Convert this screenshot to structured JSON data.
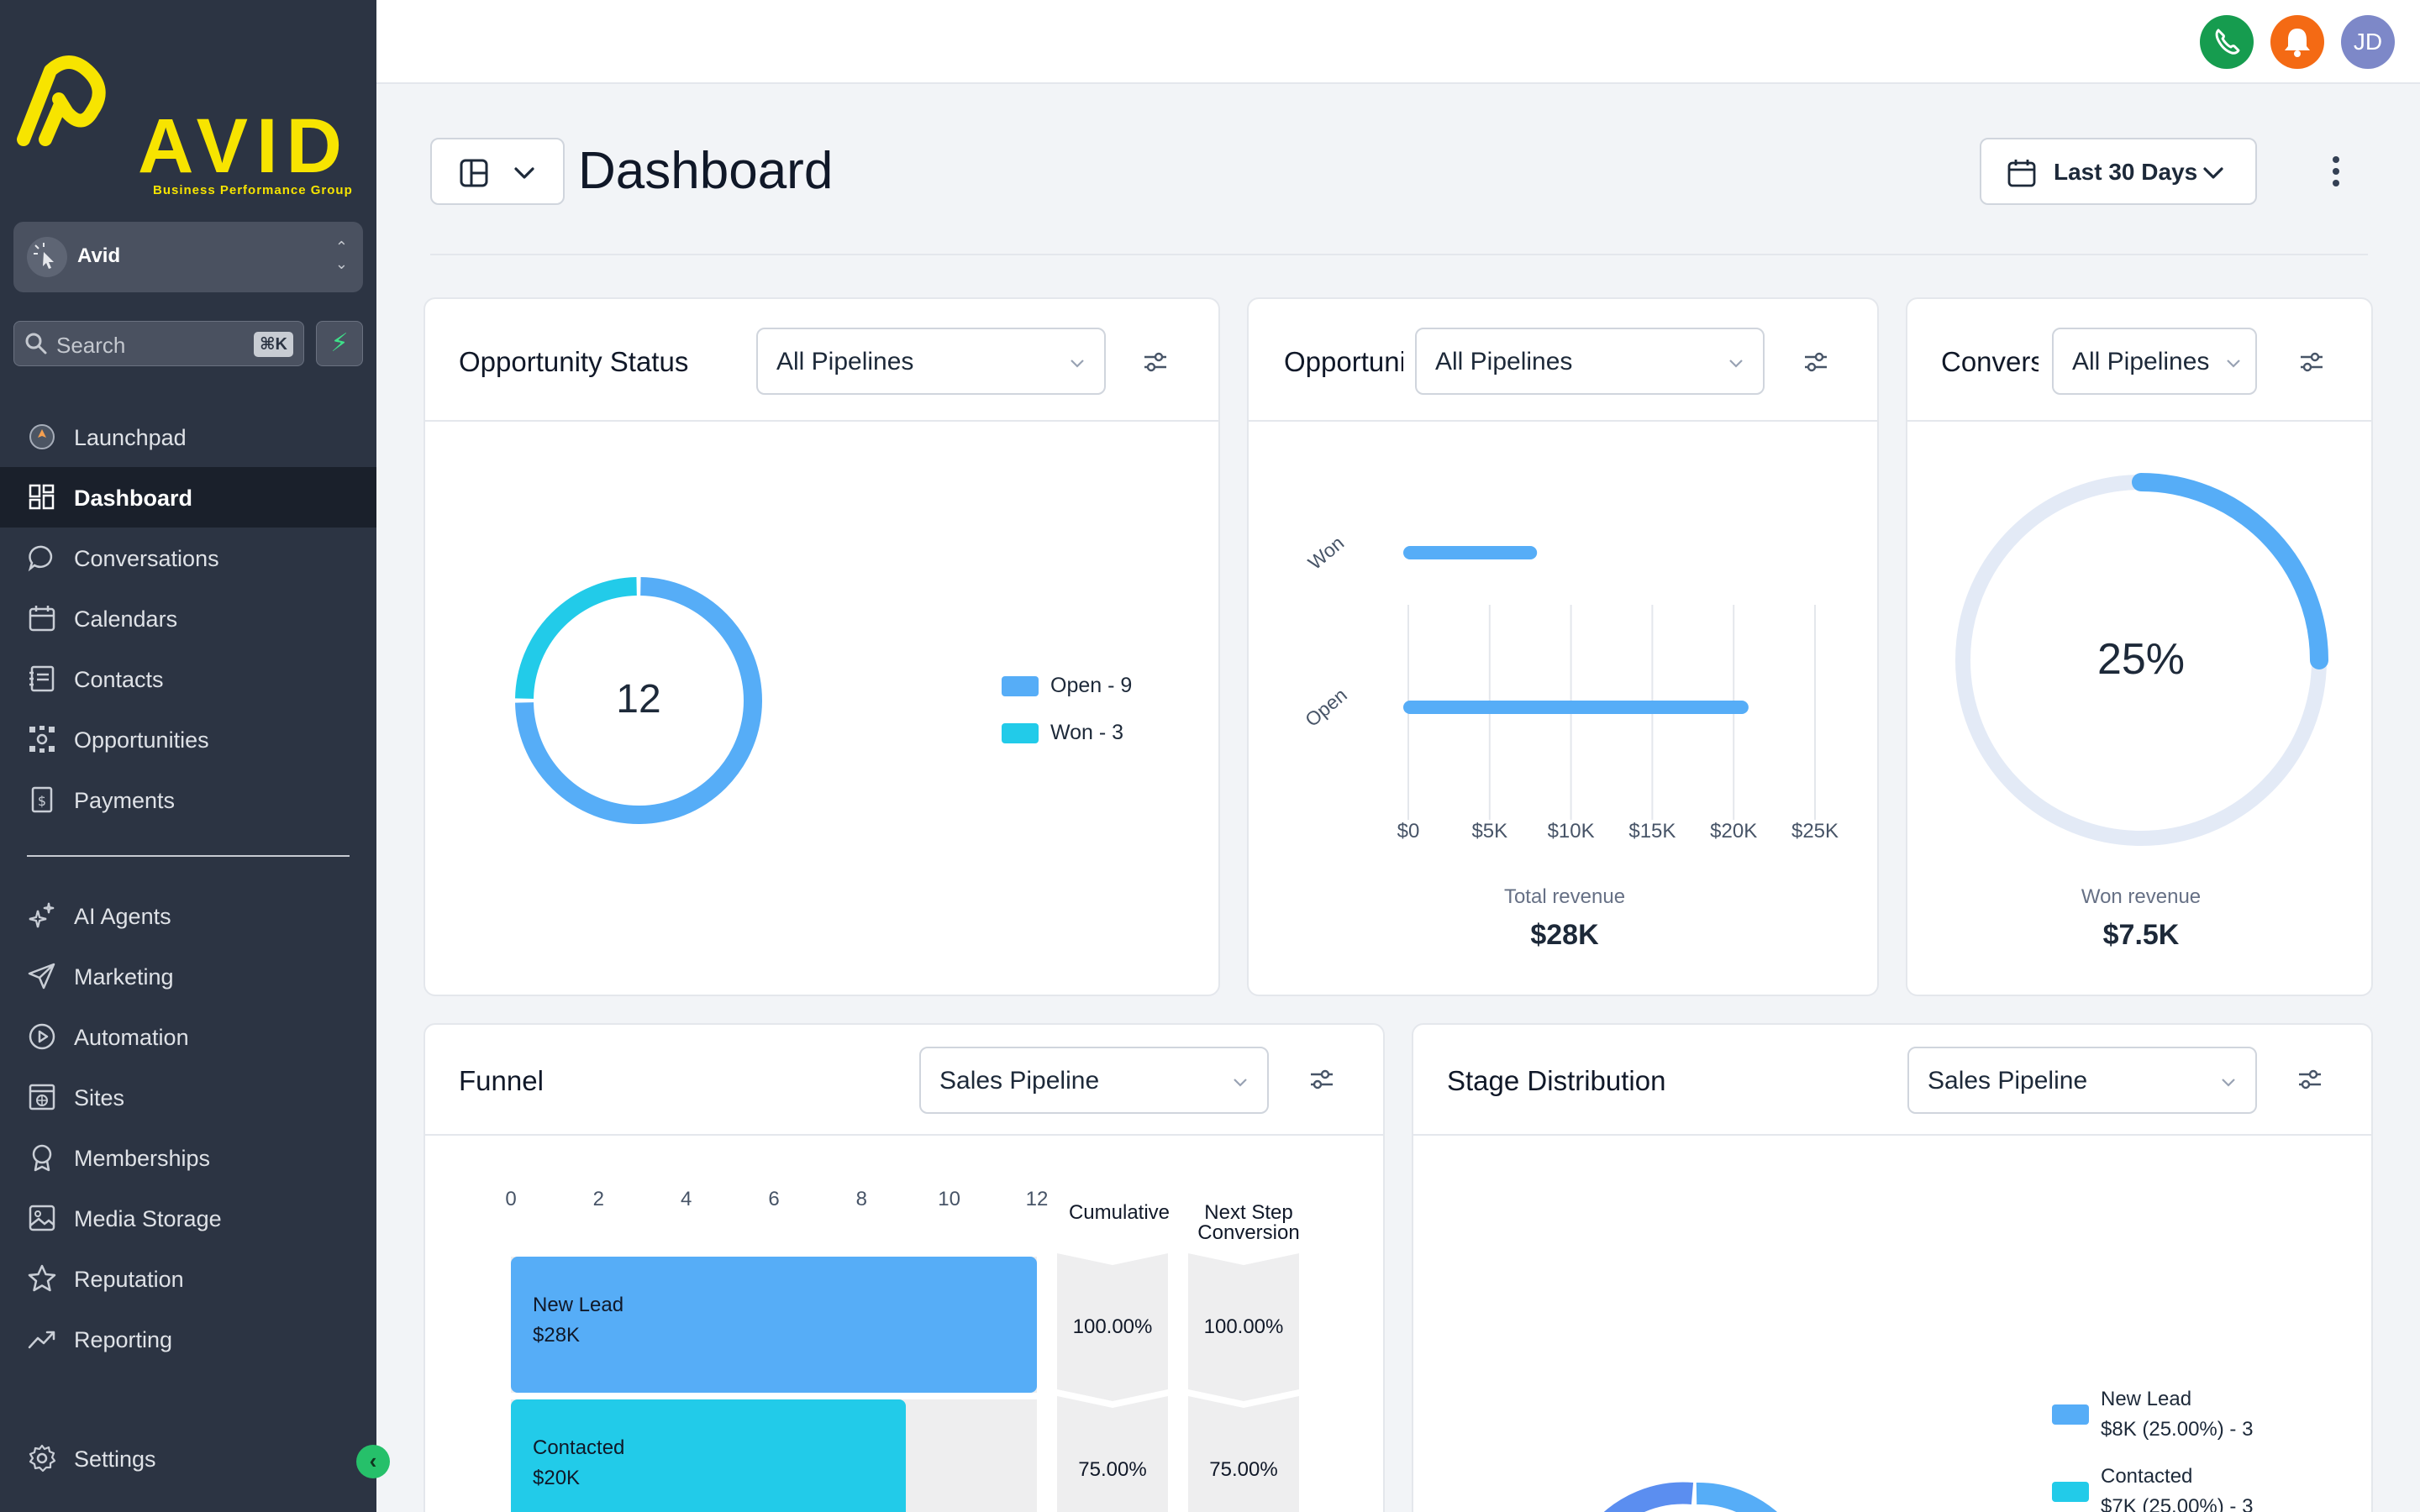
{
  "brand": {
    "name": "AVID",
    "tagline": "Business Performance Group",
    "color": "#f7e400"
  },
  "account": {
    "initial_icon": "cursor-click-icon",
    "name": "Avid"
  },
  "search": {
    "placeholder": "Search",
    "shortcut": "⌘K"
  },
  "sidebar": {
    "items": [
      {
        "label": "Launchpad",
        "icon": "rocket-icon"
      },
      {
        "label": "Dashboard",
        "icon": "grid-icon",
        "active": true
      },
      {
        "label": "Conversations",
        "icon": "chat-icon"
      },
      {
        "label": "Calendars",
        "icon": "calendar-icon"
      },
      {
        "label": "Contacts",
        "icon": "contacts-icon"
      },
      {
        "label": "Opportunities",
        "icon": "opportunities-icon"
      },
      {
        "label": "Payments",
        "icon": "payments-icon"
      },
      {
        "label": "AI Agents",
        "icon": "sparkle-icon"
      },
      {
        "label": "Marketing",
        "icon": "send-icon"
      },
      {
        "label": "Automation",
        "icon": "automation-icon"
      },
      {
        "label": "Sites",
        "icon": "sites-icon"
      },
      {
        "label": "Memberships",
        "icon": "badge-icon"
      },
      {
        "label": "Media Storage",
        "icon": "image-icon"
      },
      {
        "label": "Reputation",
        "icon": "star-icon"
      },
      {
        "label": "Reporting",
        "icon": "trend-icon"
      }
    ],
    "settings_label": "Settings"
  },
  "topbar": {
    "user_initials": "JD"
  },
  "page": {
    "title": "Dashboard",
    "date_range": "Last 30 Days"
  },
  "colors": {
    "blue": "#56adf7",
    "cyan": "#22cbe9",
    "track": "#e3eaf6"
  },
  "cards": {
    "status": {
      "title": "Opportunity Status",
      "filter": "All Pipelines",
      "total": "12",
      "legend": [
        "Open - 9",
        "Won - 3"
      ]
    },
    "value": {
      "title": "Opportunity Value",
      "filter": "All Pipelines",
      "total_label": "Total revenue",
      "total_value": "$28K"
    },
    "conversion": {
      "title": "Conversion Rate",
      "filter": "All Pipelines",
      "rate_label": "25%",
      "won_label": "Won revenue",
      "won_value": "$7.5K"
    },
    "funnel": {
      "title": "Funnel",
      "filter": "Sales Pipeline",
      "col_cumulative": "Cumulative",
      "col_next": "Next Step Conversion"
    },
    "stage": {
      "title": "Stage Distribution",
      "filter": "Sales Pipeline",
      "legend": [
        {
          "name": "New Lead",
          "detail": "$8K (25.00%) - 3"
        },
        {
          "name": "Contacted",
          "detail": "$7K (25.00%) - 3"
        }
      ]
    }
  },
  "chart_data": [
    {
      "type": "pie",
      "title": "Opportunity Status",
      "categories": [
        "Open",
        "Won"
      ],
      "values": [
        9,
        3
      ],
      "center_label": "12"
    },
    {
      "type": "bar",
      "orientation": "horizontal",
      "title": "Opportunity Value",
      "categories": [
        "Won",
        "Open"
      ],
      "values": [
        7500,
        20500
      ],
      "xlim": [
        0,
        25000
      ],
      "ticks": [
        "$0",
        "$5K",
        "$10K",
        "$15K",
        "$20K",
        "$25K"
      ],
      "xlabel": "Total revenue"
    },
    {
      "type": "pie",
      "title": "Conversion Rate",
      "values": [
        25,
        75
      ],
      "center_label": "25%"
    },
    {
      "type": "bar",
      "orientation": "horizontal",
      "title": "Funnel",
      "ticks": [
        "0",
        "2",
        "4",
        "6",
        "8",
        "10",
        "12"
      ],
      "xlim": [
        0,
        12
      ],
      "categories": [
        "New Lead",
        "Contacted"
      ],
      "values": [
        12,
        9
      ],
      "value_labels": [
        "$28K",
        "$20K"
      ],
      "cumulative": [
        "100.00%",
        "75.00%"
      ],
      "next_step_conversion": [
        "100.00%",
        "75.00%"
      ]
    }
  ]
}
